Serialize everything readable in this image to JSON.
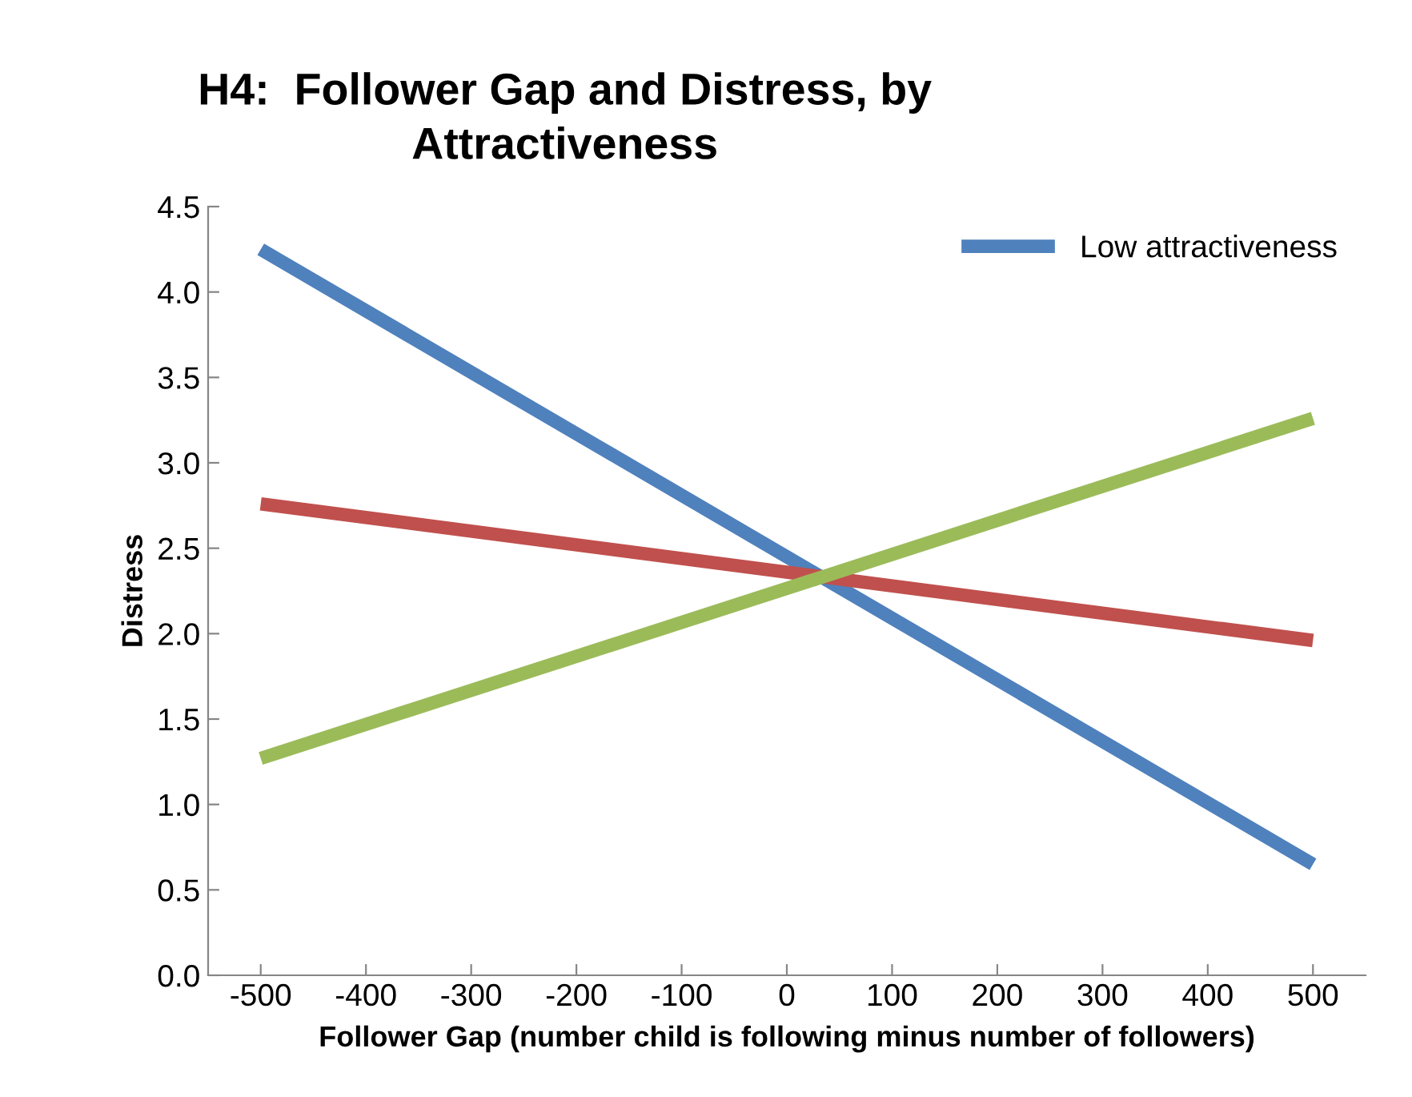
{
  "chart_data": {
    "type": "line",
    "title": "H4:  Follower Gap and Distress, by\nAttractiveness",
    "xlabel": "Follower Gap (number child is following minus number of followers)",
    "ylabel": "Distress",
    "x": [
      -500,
      500
    ],
    "series": [
      {
        "name": "Low attractiveness",
        "color": "#4f81bd",
        "values": [
          4.25,
          0.65
        ]
      },
      {
        "color": "#c0504d",
        "values": [
          2.76,
          1.96
        ]
      },
      {
        "color": "#9bbb59",
        "values": [
          1.27,
          3.26
        ]
      }
    ],
    "xlim": [
      -550,
      550
    ],
    "xticks": [
      -500,
      -400,
      -300,
      -200,
      -100,
      0,
      100,
      200,
      300,
      400,
      500
    ],
    "ylim": [
      0,
      4.5
    ],
    "yticks": [
      {
        "value": 0,
        "label": "0.0"
      },
      {
        "value": 0.5,
        "label": "0.5"
      },
      {
        "value": 1,
        "label": "1.0"
      },
      {
        "value": 1.5,
        "label": "1.5"
      },
      {
        "value": 2,
        "label": "2.0"
      },
      {
        "value": 2.5,
        "label": "2.5"
      },
      {
        "value": 3,
        "label": "3.0"
      },
      {
        "value": 3.5,
        "label": "3.5"
      },
      {
        "value": 4,
        "label": "4.0"
      },
      {
        "value": 4.5,
        "label": "4.5"
      }
    ],
    "grid": false,
    "legend": "top right",
    "marker": "none",
    "line_style": "solid"
  }
}
